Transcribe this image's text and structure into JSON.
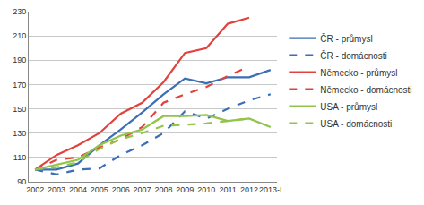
{
  "chart_data": {
    "type": "line",
    "categories": [
      "2002",
      "2003",
      "2004",
      "2005",
      "2006",
      "2007",
      "2008",
      "2009",
      "2010",
      "2011",
      "2012",
      "2013-I"
    ],
    "series": [
      {
        "name": "ČR - průmysl",
        "color": "#3a6fb8",
        "line_style": "solid",
        "values": [
          100,
          100,
          105,
          120,
          133,
          147,
          162,
          175,
          171,
          176,
          176,
          182
        ]
      },
      {
        "name": "ČR - domácnosti",
        "color": "#3a6fb8",
        "line_style": "dash",
        "values": [
          100,
          96,
          100,
          101,
          112,
          120,
          130,
          148,
          142,
          150,
          157,
          162
        ]
      },
      {
        "name": "Německo - průmysl",
        "color": "#e2423c",
        "line_style": "solid",
        "values": [
          100,
          112,
          120,
          130,
          146,
          155,
          172,
          196,
          200,
          220,
          225,
          null
        ]
      },
      {
        "name": "Německo - domácnosti",
        "color": "#e2423c",
        "line_style": "dash",
        "values": [
          100,
          108,
          110,
          118,
          125,
          135,
          155,
          162,
          168,
          177,
          185,
          null
        ]
      },
      {
        "name": "USA - průmysl",
        "color": "#92c34a",
        "line_style": "solid",
        "values": [
          100,
          104,
          108,
          120,
          128,
          133,
          144,
          144,
          145,
          140,
          142,
          135
        ]
      },
      {
        "name": "USA - domácnosti",
        "color": "#92c34a",
        "line_style": "dash",
        "values": [
          100,
          102,
          106,
          117,
          125,
          130,
          136,
          137,
          138,
          140,
          142,
          null
        ]
      }
    ],
    "ylim": [
      90,
      230
    ],
    "yticks": [
      90,
      110,
      130,
      150,
      170,
      190,
      210,
      230
    ],
    "grid": true,
    "legend": "right"
  }
}
